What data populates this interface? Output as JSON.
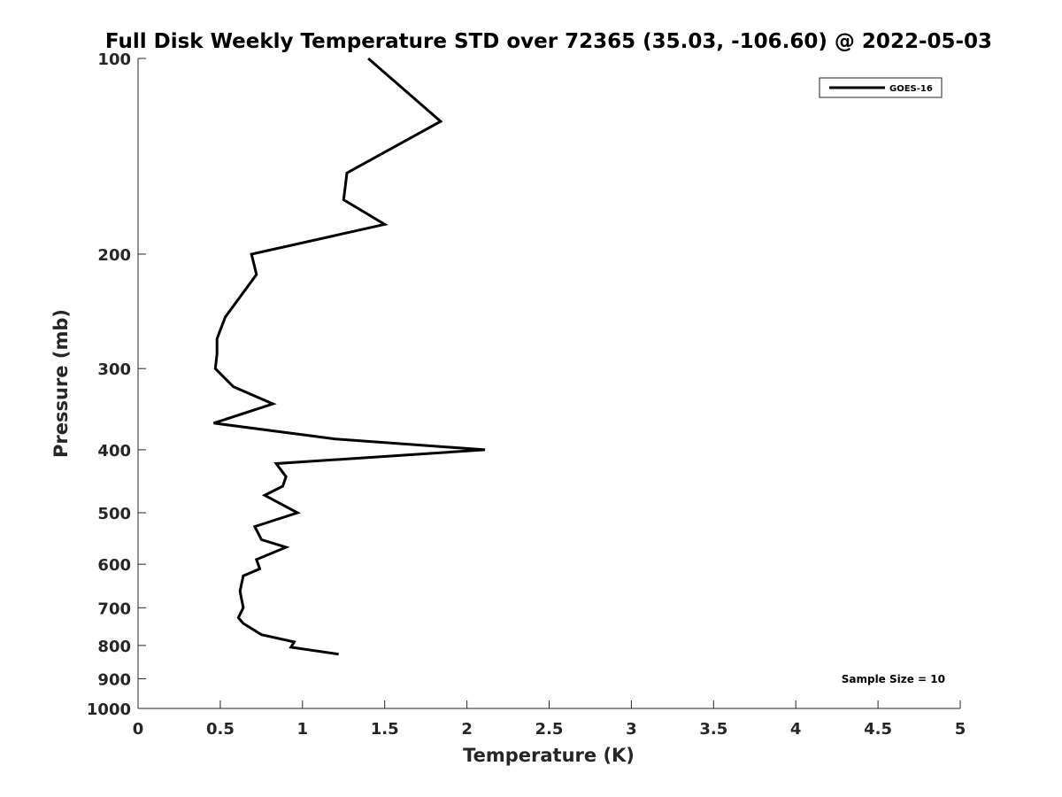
{
  "chart_data": {
    "type": "line",
    "title": "Full Disk Weekly Temperature STD over 72365 (35.03, -106.60) @ 2022-05-03",
    "xlabel": "Temperature (K)",
    "ylabel": "Pressure (mb)",
    "xlim": [
      0,
      5
    ],
    "ylim": [
      100,
      1000
    ],
    "y_scale": "log",
    "y_reversed": true,
    "grid": false,
    "x_ticks": [
      0,
      0.5,
      1,
      1.5,
      2,
      2.5,
      3,
      3.5,
      4,
      4.5,
      5
    ],
    "x_tick_labels": [
      "0",
      "0.5",
      "1",
      "1.5",
      "2",
      "2.5",
      "3",
      "3.5",
      "4",
      "4.5",
      "5"
    ],
    "y_ticks": [
      100,
      200,
      300,
      400,
      500,
      600,
      700,
      800,
      900,
      1000
    ],
    "y_tick_labels": [
      "100",
      "200",
      "300",
      "400",
      "500",
      "600",
      "700",
      "800",
      "900",
      "1000"
    ],
    "legend": {
      "position": "top-right",
      "entries": [
        "GOES-16"
      ]
    },
    "annotation": "Sample Size = 10",
    "series": [
      {
        "name": "GOES-16",
        "color": "#000000",
        "points": [
          [
            1.4,
            100
          ],
          [
            1.84,
            125
          ],
          [
            1.27,
            150
          ],
          [
            1.25,
            165
          ],
          [
            1.5,
            180
          ],
          [
            0.69,
            200
          ],
          [
            0.72,
            215
          ],
          [
            0.53,
            250
          ],
          [
            0.48,
            270
          ],
          [
            0.48,
            285
          ],
          [
            0.47,
            300
          ],
          [
            0.58,
            320
          ],
          [
            0.82,
            340
          ],
          [
            0.46,
            364
          ],
          [
            1.2,
            385
          ],
          [
            2.11,
            400
          ],
          [
            0.84,
            420
          ],
          [
            0.9,
            440
          ],
          [
            0.88,
            455
          ],
          [
            0.77,
            470
          ],
          [
            0.97,
            500
          ],
          [
            0.71,
            525
          ],
          [
            0.75,
            550
          ],
          [
            0.9,
            565
          ],
          [
            0.72,
            590
          ],
          [
            0.74,
            610
          ],
          [
            0.64,
            625
          ],
          [
            0.62,
            660
          ],
          [
            0.64,
            700
          ],
          [
            0.61,
            725
          ],
          [
            0.64,
            740
          ],
          [
            0.75,
            770
          ],
          [
            0.95,
            790
          ],
          [
            0.93,
            805
          ],
          [
            1.22,
            825
          ]
        ]
      }
    ]
  }
}
